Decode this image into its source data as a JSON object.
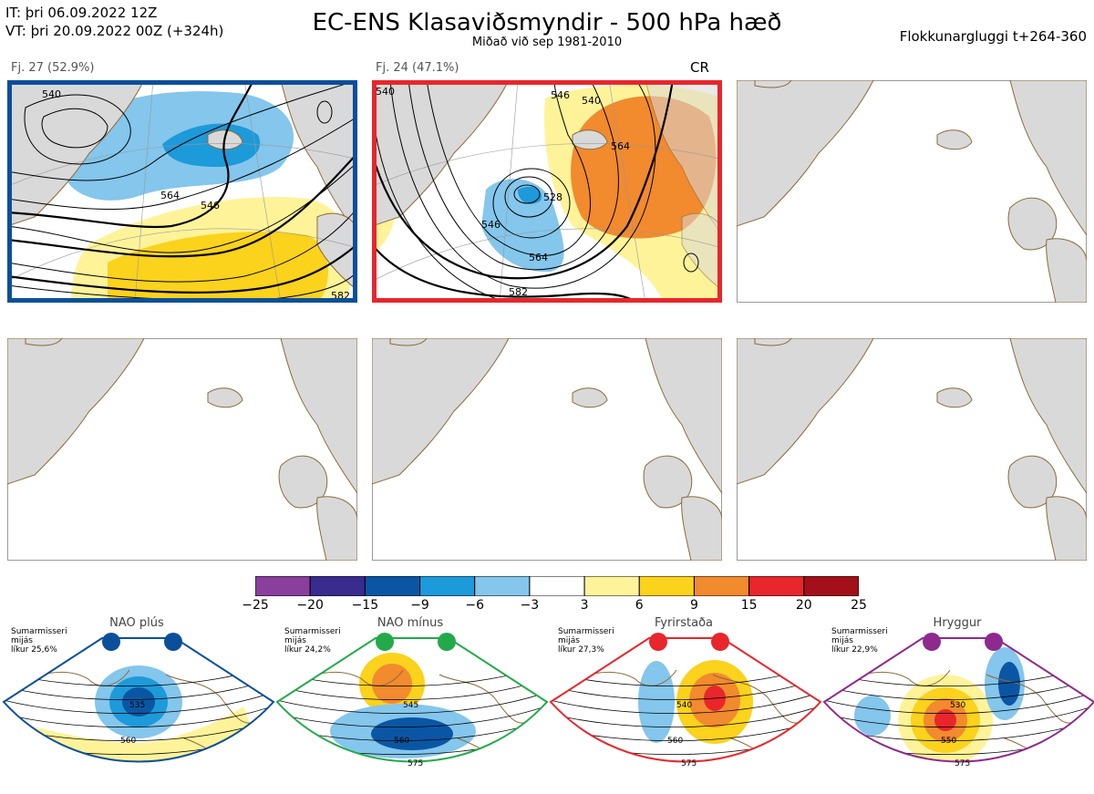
{
  "header": {
    "it_line": "IT: þri 06.09.2022 12Z",
    "vt_line": "VT: þri 20.09.2022 00Z  (+324h)",
    "title": "EC-ENS Klasaviðsmyndir - 500 hPa hæð",
    "subtitle": "Miðað við sep 1981-2010",
    "window": "Flokkunargluggi t+264-360"
  },
  "colors": {
    "cluster1_frame": "#0a4f9a",
    "cluster2_frame": "#e8262c",
    "land": "#d9d9d9",
    "coast": "#8a6a3a",
    "contour": "#000000"
  },
  "clusters": [
    {
      "label": "Fj. 27 (52.9%)",
      "regime": "",
      "contour_labels": [
        "540",
        "546",
        "564",
        "582"
      ]
    },
    {
      "label": "Fj. 24 (47.1%)",
      "regime": "CR",
      "contour_labels": [
        "546",
        "540",
        "528",
        "546",
        "564",
        "582",
        "540",
        "564"
      ]
    }
  ],
  "colorbar": {
    "ticks": [
      "−25",
      "−20",
      "−15",
      "−9",
      "−6",
      "−3",
      "3",
      "6",
      "9",
      "15",
      "20",
      "25"
    ],
    "colors": [
      "#8a3f9c",
      "#3a2b8f",
      "#0b56a4",
      "#1d9ad9",
      "#84c6ec",
      "#ffffff",
      "#fff39a",
      "#fbd21c",
      "#f28a2e",
      "#e8262c",
      "#a3101a"
    ]
  },
  "regimes": [
    {
      "name": "NAO plús",
      "season": "Sumarmisseri",
      "type": "mijás",
      "likelihood": "líkur 25,6%",
      "color": "#0a4f9a",
      "contour_labels": [
        "535",
        "560"
      ]
    },
    {
      "name": "NAO mínus",
      "season": "Sumarmisseri",
      "type": "mijás",
      "likelihood": "líkur 24,2%",
      "color": "#22aa4a",
      "contour_labels": [
        "545",
        "560",
        "575"
      ]
    },
    {
      "name": "Fyrirstaða",
      "season": "Sumarmisseri",
      "type": "mijás",
      "likelihood": "líkur 27,3%",
      "color": "#e8262c",
      "contour_labels": [
        "540",
        "560",
        "575"
      ]
    },
    {
      "name": "Hryggur",
      "season": "Sumarmisseri",
      "type": "mijás",
      "likelihood": "líkur 22,9%",
      "color": "#8e2a8e",
      "contour_labels": [
        "530",
        "550",
        "575"
      ]
    }
  ]
}
